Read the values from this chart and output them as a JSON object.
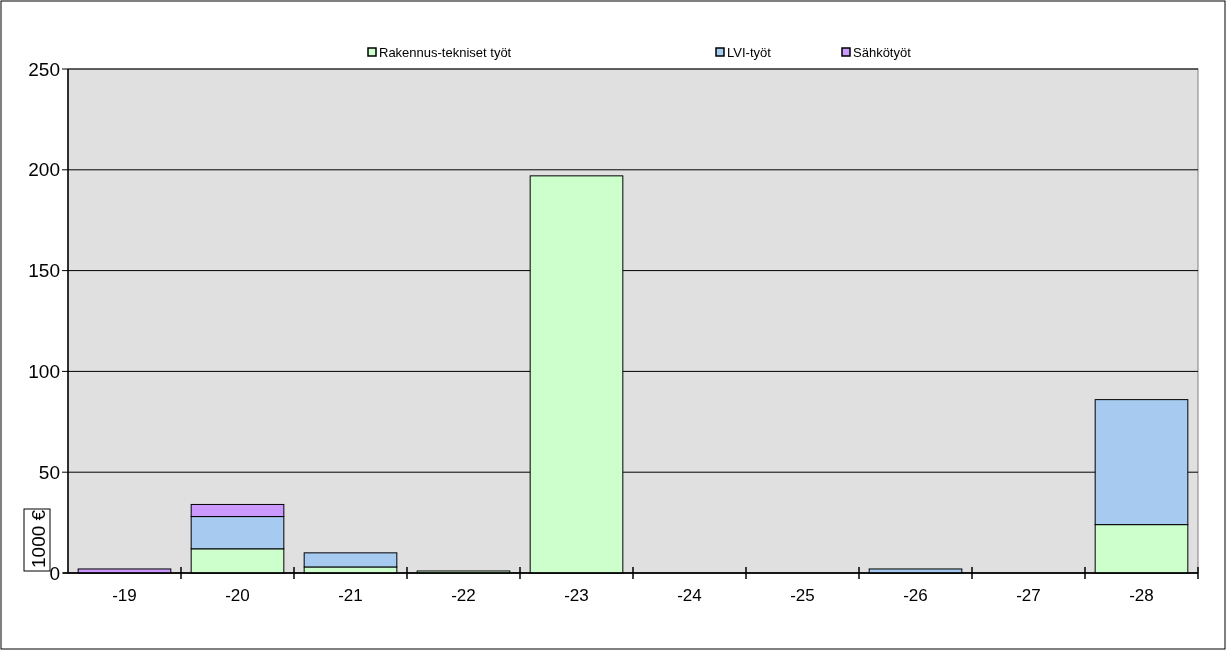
{
  "chart_data": {
    "type": "bar",
    "stacked": true,
    "ylabel": "1000 €",
    "categories": [
      "-19",
      "-20",
      "-21",
      "-22",
      "-23",
      "-24",
      "-25",
      "-26",
      "-27",
      "-28"
    ],
    "series": [
      {
        "name": "Rakennus-tekniset työt",
        "color": "#ccffcc",
        "values": [
          0,
          12,
          3,
          1,
          197,
          0,
          0,
          0,
          0,
          24
        ]
      },
      {
        "name": "LVI-työt",
        "color": "#a6caf0",
        "values": [
          0,
          16,
          7,
          0,
          0,
          0,
          0,
          2,
          0,
          62
        ]
      },
      {
        "name": "Sähkötyöt",
        "color": "#cc99ff",
        "values": [
          2,
          6,
          0,
          0,
          0,
          0,
          0,
          0,
          0,
          0
        ]
      }
    ],
    "ylim": [
      0,
      250
    ],
    "yticks": [
      0,
      50,
      100,
      150,
      200,
      250
    ],
    "grid": "y",
    "legend": "top"
  }
}
